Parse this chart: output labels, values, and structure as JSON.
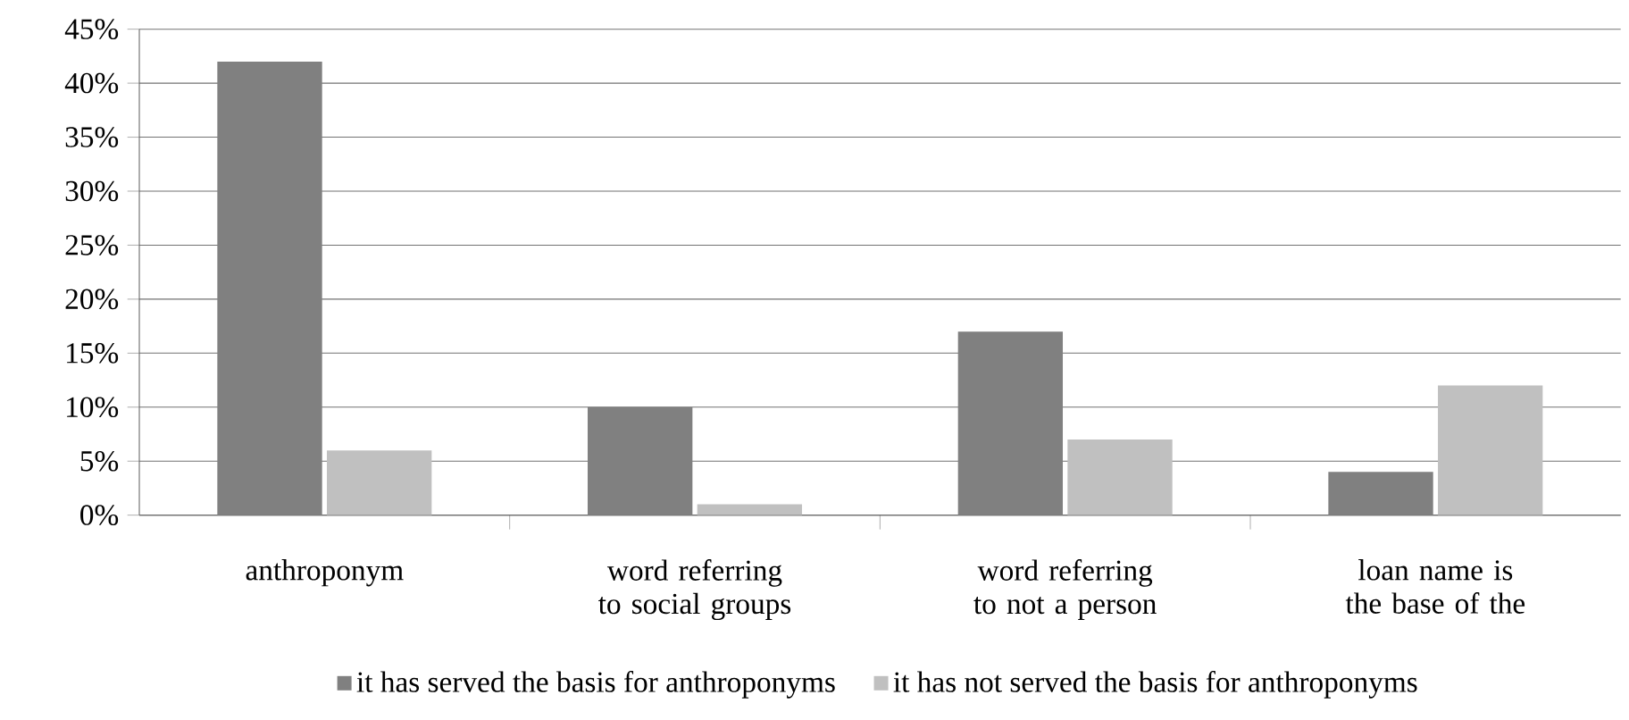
{
  "chart_data": {
    "type": "bar",
    "categories": [
      "anthroponym",
      "word referring to social groups",
      "word referring to not a person",
      "loan name is the base of the"
    ],
    "series": [
      {
        "name": "it has served the basis for anthroponyms",
        "color": "#808080",
        "values": [
          42,
          10,
          17,
          4
        ]
      },
      {
        "name": "it has not served the basis for anthroponyms",
        "color": "#c0c0c0",
        "values": [
          6,
          1,
          7,
          12
        ]
      }
    ],
    "ylim": [
      0,
      45
    ],
    "yticks": [
      {
        "value": 0,
        "label": "0%"
      },
      {
        "value": 5,
        "label": "5%"
      },
      {
        "value": 10,
        "label": "10%"
      },
      {
        "value": 15,
        "label": "15%"
      },
      {
        "value": 20,
        "label": "20%"
      },
      {
        "value": 25,
        "label": "25%"
      },
      {
        "value": 30,
        "label": "30%"
      },
      {
        "value": 35,
        "label": "35%"
      },
      {
        "value": 40,
        "label": "40%"
      },
      {
        "value": 45,
        "label": "45%"
      }
    ],
    "grid": "y",
    "legend": "bottom"
  }
}
